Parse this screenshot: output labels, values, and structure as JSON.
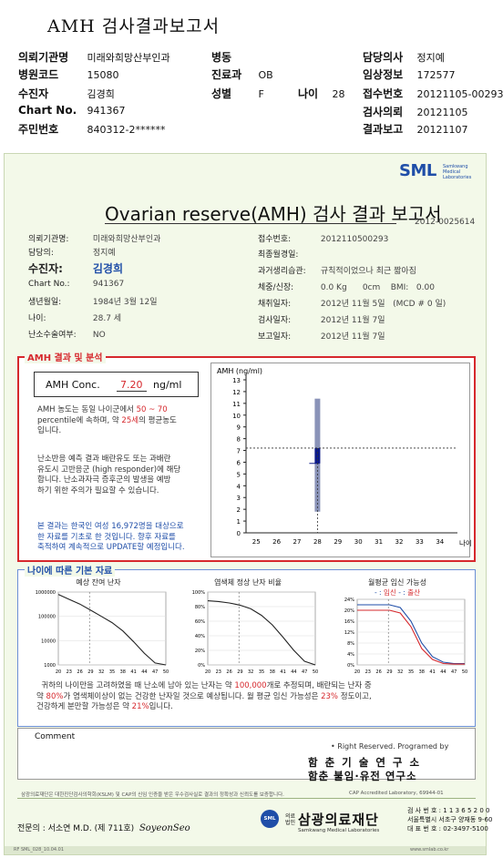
{
  "header": {
    "title": "AMH 검사결과보고서",
    "rows": [
      [
        {
          "label": "의뢰기관명",
          "value": "미래와희망산부인과"
        },
        {
          "label": "병동",
          "value": ""
        },
        {
          "label": "담당의사",
          "value": "정지예"
        }
      ],
      [
        {
          "label": "병원코드",
          "value": "15080"
        },
        {
          "label": "진료과",
          "value": "OB"
        },
        {
          "label": "임상정보",
          "value": "172577"
        }
      ],
      [
        {
          "label": "수진자",
          "value": "김경희"
        },
        {
          "label": "성별",
          "value": "F"
        },
        {
          "label": "접수번호",
          "value": "20121105-00293"
        }
      ],
      [
        {
          "label": "Chart No.",
          "value": "941367"
        },
        {
          "label": "",
          "value": ""
        },
        {
          "label": "검사의뢰",
          "value": "20121105"
        }
      ],
      [
        {
          "label": "주민번호",
          "value": "840312-2******"
        },
        {
          "label": "",
          "value": ""
        },
        {
          "label": "결과보고",
          "value": "20121107"
        }
      ]
    ],
    "age": {
      "label": "나이",
      "value": "28"
    }
  },
  "report": {
    "logo": {
      "text": "SML",
      "sub": "Samkwang Medical Laboratories"
    },
    "title": "Ovarian reserve(AMH) 검사 결과 보고서",
    "reg_no": "2012-0025614",
    "left_info": [
      {
        "label": "의뢰기관명:",
        "value": "미래와희망산부인과"
      },
      {
        "label": "담당의:",
        "value": "정지예"
      },
      {
        "label": "수진자:",
        "value": "김경희"
      },
      {
        "label": "Chart No.:",
        "value": "941367"
      },
      {
        "label": "생년월일:",
        "value": "1984년 3월 12일"
      },
      {
        "label": "나이:",
        "value": "28.7 세"
      },
      {
        "label": "난소수술여부:",
        "value": "NO"
      }
    ],
    "right_info": [
      {
        "label": "접수번호:",
        "value": "2012110500293"
      },
      {
        "label": "최종월경일:",
        "value": ""
      },
      {
        "label": "과거생리습관:",
        "value": "규칙적이었으나 최근 짧아짐"
      },
      {
        "label": "체중/신장:",
        "value": "0.0 Kg      0cm    BMI:   0.00"
      },
      {
        "label": "채취일자:",
        "value": "2012년 11월 5일   (MCD # 0 일)"
      },
      {
        "label": "검사일자:",
        "value": "2012년 11월 7일"
      },
      {
        "label": "보고일자:",
        "value": "2012년 11월 7일"
      }
    ],
    "amh_section": {
      "label": "AMH 결과 및 분석",
      "conc_label": "AMH Conc.",
      "conc_value": "7.20",
      "conc_unit": "ng/ml",
      "p1_a": "AMH 농도는 동일 나이군에서",
      "p1_pct": "50 ~ 70",
      "p1_b": "percentile에 속하며, 약",
      "p1_age": "25세",
      "p1_c": "의 평균농도",
      "p1_d": "입니다.",
      "p2": [
        "난소반응 예측 결과 배란유도 또는 과배란",
        "유도시 고반응군 (high responder)에 해당",
        "합니다. 난소과자극 증후군의 발생을 예방",
        "하기 위한 주의가 필요할 수 있습니다."
      ],
      "p3": [
        "본 결과는 한국인 여성 16,972명을 대상으로",
        "한 자료를 기초로 한 것입니다. 향후 자료를",
        "축적하여 계속적으로 UPDATE할 예정입니다."
      ]
    },
    "age_section": {
      "label": "나이에 따른 기본 자료",
      "bottom_a": "귀하의 나이만을 고려하였을 때 난소에 남아 있는 난자는 약",
      "bottom_num": "100,000",
      "bottom_b": "개로 추정되며, 배란되는 난자 중",
      "bottom_c": "약",
      "bottom_pct1": "80%",
      "bottom_d": "가 염색체이상이 없는 건강한 난자일 것으로 예상됩니다. 월 평균 임신 가능성은",
      "bottom_pct2": "23%",
      "bottom_e": "정도이고,",
      "bottom_f": "건강하게 분만할 가능성은 약",
      "bottom_pct3": "21%",
      "bottom_g": "입니다."
    },
    "comment_label": "Comment",
    "rights": "• Right Reserved. Programed by",
    "inst1": "함 춘 기 술 연 구 소",
    "inst2": "함춘 불임·유전 연구소",
    "foot_note": "삼광의료재단은 대한진단검사의학회(KSLM) 및 CAP의 신임 인증을 받은 우수검사실로 결과의 정확성과 신뢰도를 보증합니다.",
    "foot_cap": "CAP Accredited Laboratory,  69944-01",
    "specialist_label": "전문의 : 서소연 M.D. (제 711호)",
    "specialist_sig": "SoyeonSeo",
    "badge": "SML",
    "corp_small": "의료법인",
    "corp_name": "삼광의료재단",
    "corp_en": "Samkwang Medical Laboratories",
    "addr": [
      "검 사 번 호 : 1 1 3 6 5 2 0 0",
      "서울특별시 서초구 양재동 9-60",
      "대 표 번 호 : 02-3497-5100"
    ],
    "bottom_left": "RF   SML_028_10.04.01",
    "bottom_right": "www.smlab.co.kr"
  },
  "chart_data": [
    {
      "type": "bar",
      "title": "",
      "ylabel": "AMH (ng/ml)",
      "xlabel": "나이",
      "x_ticks": [
        25,
        26,
        27,
        28,
        29,
        30,
        31,
        32,
        33,
        34
      ],
      "ylim": [
        0,
        13
      ],
      "y_ticks": [
        0,
        1,
        2,
        3,
        4,
        5,
        6,
        7,
        8,
        9,
        10,
        11,
        12,
        13
      ],
      "series": [
        {
          "x": 28,
          "range_low": 1.8,
          "range_high": 11.4,
          "iqr_low": 5.9,
          "iqr_high": 7.2,
          "median": 5.9
        }
      ],
      "patient_point": {
        "x": 28.7,
        "y": 7.2
      }
    },
    {
      "type": "line",
      "title": "예상 잔여 난자",
      "x_ticks": [
        20,
        23,
        26,
        29,
        32,
        35,
        38,
        41,
        44,
        47,
        50
      ],
      "y_ticks": [
        1000,
        10000,
        100000,
        1000000
      ],
      "y_scale": "log",
      "x": [
        20,
        23,
        26,
        29,
        32,
        35,
        38,
        41,
        44,
        47,
        50
      ],
      "values": [
        800000,
        500000,
        320000,
        180000,
        100000,
        55000,
        25000,
        9000,
        3000,
        1200,
        1000
      ]
    },
    {
      "type": "line",
      "title": "염색체 정상 난자 비율",
      "x_ticks": [
        20,
        23,
        26,
        29,
        32,
        35,
        38,
        41,
        44,
        47,
        50
      ],
      "y_ticks": [
        "0%",
        "20%",
        "40%",
        "60%",
        "80%",
        "100%"
      ],
      "ylim": [
        0,
        100
      ],
      "x": [
        20,
        23,
        26,
        29,
        32,
        35,
        38,
        41,
        44,
        47,
        50
      ],
      "values": [
        88,
        87,
        85,
        82,
        77,
        68,
        55,
        38,
        20,
        5,
        0
      ]
    },
    {
      "type": "line",
      "title": "월평균 임신 가능성",
      "legend": [
        {
          "name": "임신",
          "color": "#d6282d"
        },
        {
          "name": "출산",
          "color": "#d6282d"
        }
      ],
      "x_ticks": [
        20,
        23,
        26,
        29,
        32,
        35,
        38,
        41,
        44,
        47,
        50
      ],
      "y_ticks": [
        "0%",
        "4%",
        "8%",
        "12%",
        "16%",
        "20%",
        "24%"
      ],
      "ylim": [
        0,
        24
      ],
      "x": [
        20,
        23,
        26,
        29,
        32,
        35,
        38,
        41,
        44,
        47,
        50
      ],
      "series": [
        {
          "name": "임신",
          "values": [
            22,
            22,
            22,
            22,
            21,
            16,
            8,
            3,
            1,
            0.5,
            0.5
          ]
        },
        {
          "name": "출산",
          "values": [
            20,
            20,
            20,
            20,
            19,
            14,
            6,
            2,
            0.5,
            0.3,
            0.3
          ]
        }
      ]
    }
  ]
}
